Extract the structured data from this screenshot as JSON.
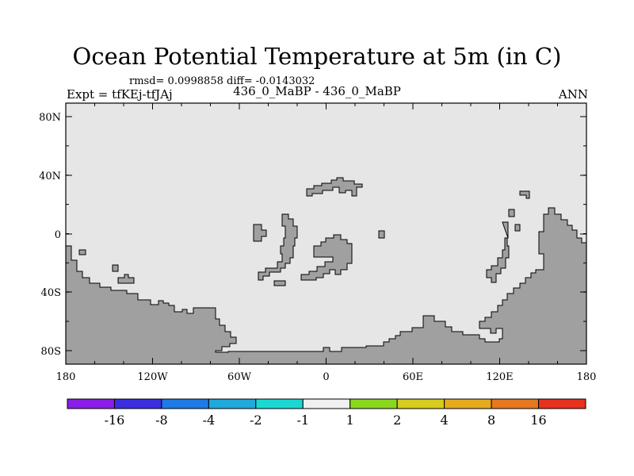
{
  "title": "Ocean Potential Temperature at 5m (in C)",
  "stats": "rmsd= 0.0998858 diff= -0.0143032",
  "left_label": "Expt = tfKEj-tfJAj",
  "center_label": "436_0_MaBP - 436_0_MaBP",
  "right_label": "ANN",
  "map": {
    "ocean_color": "#e6e6e6",
    "land_color": "#a0a0a0",
    "lat_ticks": [
      "80N",
      "40N",
      "0",
      "40S",
      "80S"
    ],
    "lon_ticks": [
      "180",
      "120W",
      "60W",
      "0",
      "60E",
      "120E",
      "180"
    ]
  },
  "colorbar": {
    "colors": [
      "#8a1ee6",
      "#3a2ee0",
      "#1e7ae6",
      "#1eaadc",
      "#1ad8d2",
      "#f0f0f0",
      "#8ad81e",
      "#d8cc1e",
      "#e6aa1e",
      "#e6781e",
      "#e6321e"
    ],
    "labels": [
      "-16",
      "-8",
      "-4",
      "-2",
      "-1",
      "1",
      "2",
      "4",
      "8",
      "16"
    ]
  }
}
